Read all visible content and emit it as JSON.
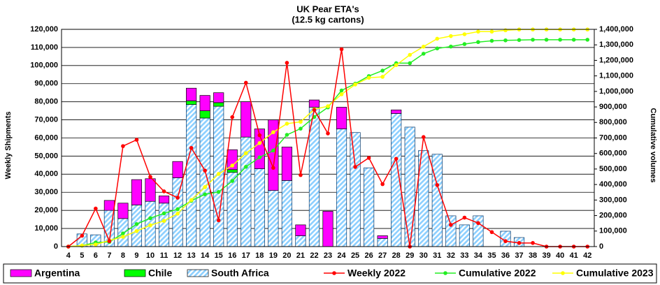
{
  "chart_data": {
    "type": "bar",
    "title": "UK Pear ETA's",
    "subtitle": "(12.5 kg cartons)",
    "ylabel": "Weekly Shipments",
    "y2label": "Cumulative volumes",
    "categories": [
      "4",
      "5",
      "6",
      "7",
      "8",
      "9",
      "10",
      "11",
      "12",
      "13",
      "14",
      "15",
      "16",
      "17",
      "18",
      "19",
      "20",
      "21",
      "22",
      "23",
      "24",
      "25",
      "26",
      "27",
      "28",
      "29",
      "30",
      "31",
      "32",
      "33",
      "34",
      "35",
      "36",
      "37",
      "38",
      "39",
      "40",
      "41",
      "42"
    ],
    "series": [
      {
        "name": "Argentina",
        "type": "bar",
        "color": "#ff00ff",
        "values": [
          0,
          0,
          0,
          5500,
          8500,
          14000,
          12500,
          4000,
          9000,
          7000,
          8500,
          5500,
          11000,
          19500,
          22000,
          39000,
          18500,
          6000,
          4000,
          19500,
          12000,
          0,
          0,
          1500,
          2000,
          0,
          0,
          0,
          0,
          0,
          0,
          0,
          0,
          0,
          0,
          0,
          0,
          0,
          0
        ]
      },
      {
        "name": "Chile",
        "type": "bar",
        "color": "#00ff00",
        "values": [
          0,
          0,
          0,
          0,
          0,
          0,
          0,
          0,
          0,
          2000,
          4000,
          2000,
          1500,
          0,
          0,
          0,
          0,
          0,
          0,
          0,
          0,
          0,
          0,
          0,
          0,
          0,
          0,
          0,
          0,
          0,
          0,
          0,
          0,
          0,
          0,
          0,
          0,
          0,
          0
        ]
      },
      {
        "name": "South Africa",
        "type": "bar",
        "color": "#8ccfff",
        "hatch": true,
        "values": [
          0,
          7000,
          6500,
          20000,
          15500,
          23000,
          25000,
          24000,
          38000,
          78500,
          71000,
          77500,
          41000,
          60500,
          43000,
          31000,
          36500,
          6000,
          77000,
          0,
          65000,
          63000,
          43500,
          4500,
          73500,
          66000,
          53000,
          51000,
          17000,
          12000,
          17000,
          0,
          8500,
          5000,
          0,
          0,
          0,
          0,
          0
        ]
      },
      {
        "name": "Weekly 2022",
        "type": "line",
        "color": "#ff0000",
        "values": [
          0,
          6000,
          21000,
          3000,
          55500,
          59000,
          38500,
          30500,
          27000,
          54500,
          42000,
          14500,
          71500,
          90500,
          61500,
          43500,
          101500,
          39500,
          75500,
          62500,
          109000,
          44000,
          49000,
          34500,
          48500,
          0,
          60500,
          34000,
          12000,
          16000,
          13000,
          8000,
          3000,
          2000,
          2000,
          0,
          0,
          0,
          0
        ]
      },
      {
        "name": "Cumulative 2022",
        "type": "line",
        "axis": "y2",
        "color": "#22ee22",
        "values": [
          0,
          6000,
          27000,
          30000,
          85000,
          145000,
          183000,
          214000,
          241000,
          295000,
          337000,
          352000,
          423000,
          514000,
          575000,
          619000,
          720000,
          760000,
          835000,
          897000,
          1006000,
          1050000,
          1099000,
          1134000,
          1182000,
          1182000,
          1243000,
          1277000,
          1289000,
          1305000,
          1318000,
          1326000,
          1329000,
          1331000,
          1333000,
          1333000,
          1333000,
          1333000,
          1333000
        ]
      },
      {
        "name": "Cumulative 2023",
        "type": "line",
        "axis": "y2",
        "color": "#ffff00",
        "values": [
          0,
          7000,
          13500,
          39000,
          63000,
          100000,
          137500,
          165500,
          212500,
          300000,
          383500,
          468500,
          522000,
          602000,
          667000,
          737000,
          792000,
          804000,
          885000,
          904500,
          981500,
          1044500,
          1088000,
          1094000,
          1169500,
          1235500,
          1288500,
          1339500,
          1356500,
          1368500,
          1385500,
          1385500,
          1394000,
          1399000,
          1399000,
          1399000,
          1399000,
          1399000,
          1399000
        ]
      }
    ],
    "ylim": [
      0,
      120000
    ],
    "yticks": [
      0,
      {
        "value": 10000,
        "label": "10,000"
      },
      {
        "value": 20000,
        "label": "20,000"
      },
      {
        "value": 30000,
        "label": "30,000"
      },
      {
        "value": 40000,
        "label": "40,000"
      },
      {
        "value": 50000,
        "label": "50,000"
      },
      {
        "value": 60000,
        "label": "60,000"
      },
      {
        "value": 70000,
        "label": "70,000"
      },
      {
        "value": 80000,
        "label": "80,000"
      },
      {
        "value": 90000,
        "label": "90,000"
      },
      {
        "value": 100000,
        "label": "100,000"
      },
      {
        "value": 110000,
        "label": "110,000"
      },
      {
        "value": 120000,
        "label": "120,000"
      }
    ],
    "y2lim": [
      0,
      1400000
    ],
    "y2ticks": [
      0,
      {
        "value": 100000,
        "label": "100,000"
      },
      {
        "value": 200000,
        "label": "200,000"
      },
      {
        "value": 300000,
        "label": "300,000"
      },
      {
        "value": 400000,
        "label": "400,000"
      },
      {
        "value": 500000,
        "label": "500,000"
      },
      {
        "value": 600000,
        "label": "600,000"
      },
      {
        "value": 700000,
        "label": "700,000"
      },
      {
        "value": 800000,
        "label": "800,000"
      },
      {
        "value": 900000,
        "label": "900,000"
      },
      {
        "value": 1000000,
        "label": "1,000,000"
      },
      {
        "value": 1100000,
        "label": "1,100,000"
      },
      {
        "value": 1200000,
        "label": "1,200,000"
      },
      {
        "value": 1300000,
        "label": "1,300,000"
      },
      {
        "value": 1400000,
        "label": "1,400,000"
      }
    ],
    "grid": true,
    "legend": "bottom"
  }
}
